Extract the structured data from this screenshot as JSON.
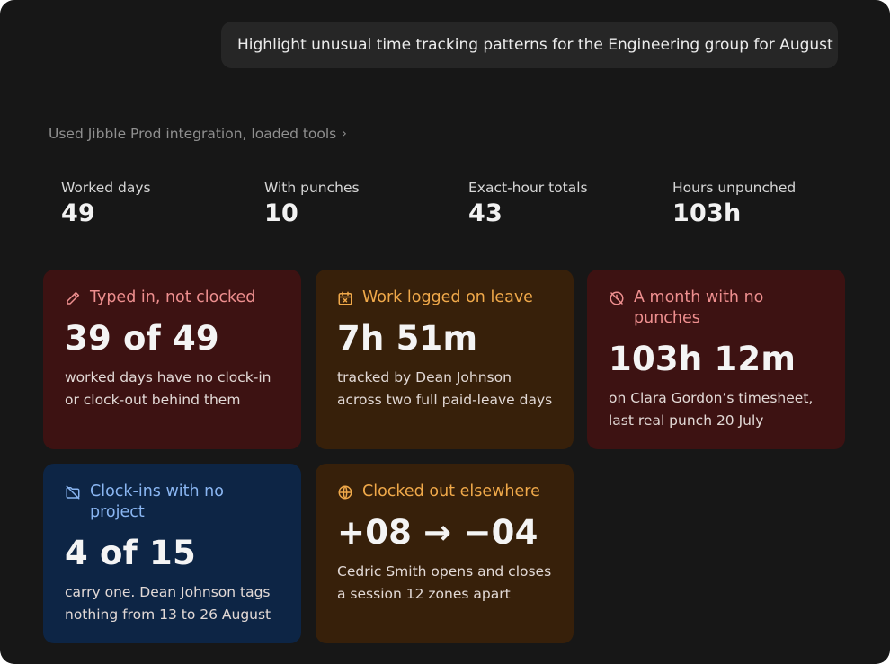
{
  "prompt": "Highlight unusual time tracking patterns for the Engineering group for August",
  "tools_line": "Used Jibble Prod integration, loaded tools",
  "tools_chevron": "›",
  "stats": [
    {
      "label": "Worked days",
      "value": "49"
    },
    {
      "label": "With punches",
      "value": "10"
    },
    {
      "label": "Exact-hour totals",
      "value": "43"
    },
    {
      "label": "Hours unpunched",
      "value": "103h"
    }
  ],
  "cards": [
    {
      "icon": "pencil-icon",
      "title": "Typed in, not clocked",
      "value": "39 of 49",
      "desc": "worked days have no clock-in or clock-out behind them",
      "color": "#3d1212"
    },
    {
      "icon": "calendar-x-icon",
      "title": "Work logged on leave",
      "value": "7h 51m",
      "desc": "tracked by Dean Johnson across two full paid-leave days",
      "color": "#37200a"
    },
    {
      "icon": "clock-off-icon",
      "title": "A month with no punches",
      "value": "103h 12m",
      "desc": "on Clara Gordon’s timesheet, last real punch 20 July",
      "color": "#3d1212"
    },
    {
      "icon": "folder-off-icon",
      "title": "Clock-ins with no project",
      "value": "4 of 15",
      "desc": "carry one. Dean Johnson tags nothing from 13 to 26 August",
      "color": "#0d2545"
    },
    {
      "icon": "globe-icon",
      "title": "Clocked out elsewhere",
      "value": "+08 → −04",
      "desc": "Cedric Smith opens and closes a session 12 zones apart",
      "color": "#37200a"
    }
  ]
}
